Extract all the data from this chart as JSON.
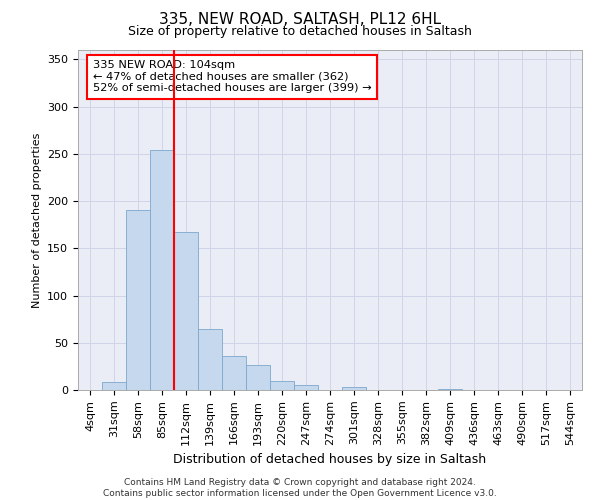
{
  "title1": "335, NEW ROAD, SALTASH, PL12 6HL",
  "title2": "Size of property relative to detached houses in Saltash",
  "xlabel": "Distribution of detached houses by size in Saltash",
  "ylabel": "Number of detached properties",
  "footnote": "Contains HM Land Registry data © Crown copyright and database right 2024.\nContains public sector information licensed under the Open Government Licence v3.0.",
  "bin_labels": [
    "4sqm",
    "31sqm",
    "58sqm",
    "85sqm",
    "112sqm",
    "139sqm",
    "166sqm",
    "193sqm",
    "220sqm",
    "247sqm",
    "274sqm",
    "301sqm",
    "328sqm",
    "355sqm",
    "382sqm",
    "409sqm",
    "436sqm",
    "463sqm",
    "490sqm",
    "517sqm",
    "544sqm"
  ],
  "bar_values": [
    0,
    9,
    191,
    254,
    167,
    65,
    36,
    27,
    10,
    5,
    0,
    3,
    0,
    0,
    0,
    1,
    0,
    0,
    0,
    0,
    0
  ],
  "bar_color": "#c5d8ee",
  "bar_edge_color": "#7ba7cc",
  "grid_color": "#d0d4e8",
  "bg_color": "#eaedf5",
  "annotation_text": "335 NEW ROAD: 104sqm\n← 47% of detached houses are smaller (362)\n52% of semi-detached houses are larger (399) →",
  "vline_pos": 3.5,
  "ylim": [
    0,
    360
  ],
  "yticks": [
    0,
    50,
    100,
    150,
    200,
    250,
    300,
    350
  ],
  "title1_fontsize": 11,
  "title2_fontsize": 9,
  "ylabel_fontsize": 8,
  "xlabel_fontsize": 9,
  "tick_fontsize": 8,
  "footnote_fontsize": 6.5
}
